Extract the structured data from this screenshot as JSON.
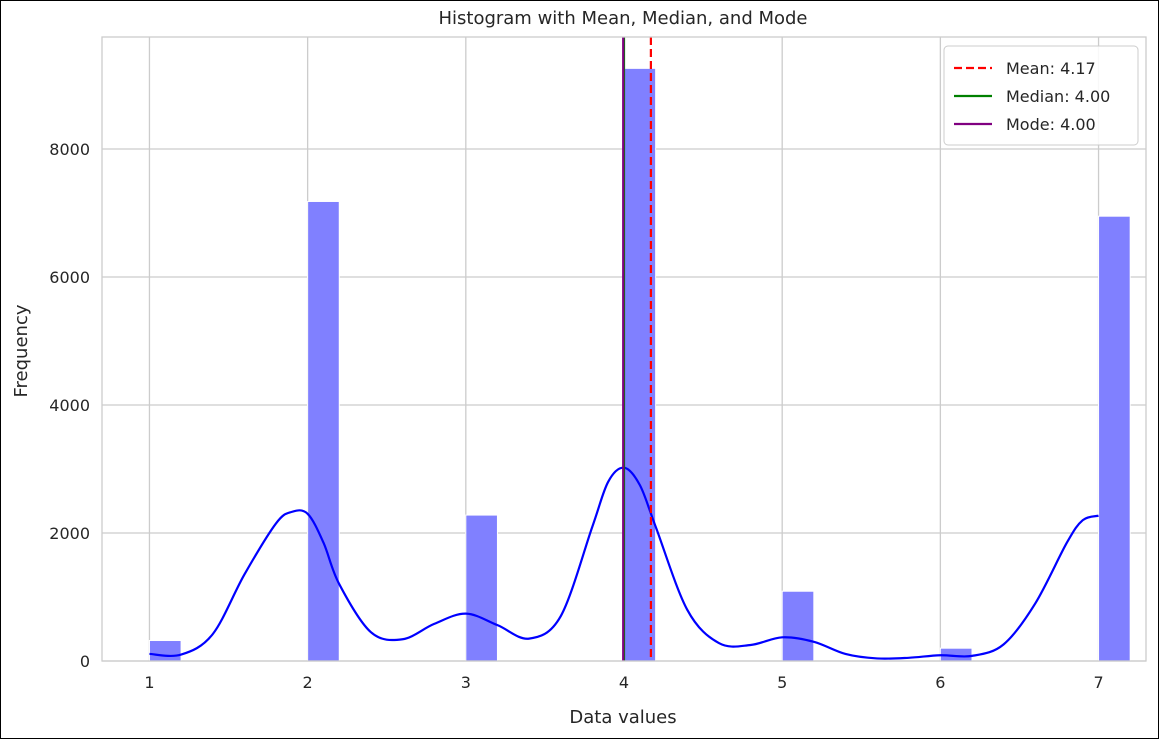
{
  "chart_data": {
    "type": "bar",
    "title": "Histogram with Mean, Median, and Mode",
    "xlabel": "Data values",
    "ylabel": "Frequency",
    "xlim": [
      0.7,
      7.3
    ],
    "ylim": [
      0,
      9750
    ],
    "xticks": [
      1,
      2,
      3,
      4,
      5,
      6,
      7
    ],
    "yticks": [
      0,
      2000,
      4000,
      6000,
      8000
    ],
    "grid": true,
    "bin_width": 0.2,
    "bars": [
      {
        "x": 1,
        "value": 320
      },
      {
        "x": 2,
        "value": 7180
      },
      {
        "x": 3,
        "value": 2280
      },
      {
        "x": 4,
        "value": 9260
      },
      {
        "x": 5,
        "value": 1090
      },
      {
        "x": 6,
        "value": 200
      },
      {
        "x": 7,
        "value": 6950
      }
    ],
    "bar_color": "#8080ff",
    "kde": {
      "color": "#0000ff",
      "x": [
        1.0,
        1.2,
        1.4,
        1.6,
        1.8,
        1.9,
        2.0,
        2.1,
        2.2,
        2.4,
        2.6,
        2.8,
        3.0,
        3.2,
        3.4,
        3.6,
        3.8,
        3.9,
        4.0,
        4.1,
        4.2,
        4.4,
        4.6,
        4.8,
        5.0,
        5.2,
        5.4,
        5.6,
        5.8,
        6.0,
        6.2,
        6.4,
        6.6,
        6.8,
        6.9,
        7.0
      ],
      "y": [
        110,
        100,
        420,
        1350,
        2150,
        2330,
        2300,
        1850,
        1200,
        450,
        340,
        580,
        740,
        560,
        350,
        700,
        2100,
        2800,
        3020,
        2750,
        2100,
        800,
        280,
        250,
        370,
        300,
        110,
        40,
        50,
        90,
        80,
        260,
        900,
        1850,
        2200,
        2270
      ]
    },
    "reference_lines": [
      {
        "name": "Mean: 4.17",
        "x": 4.17,
        "color": "#ff0000",
        "style": "dashed"
      },
      {
        "name": "Median: 4.00",
        "x": 4.0,
        "color": "#008000",
        "style": "solid"
      },
      {
        "name": "Mode: 4.00",
        "x": 4.0,
        "color": "#800080",
        "style": "solid"
      }
    ],
    "legend_position": "top-right"
  }
}
